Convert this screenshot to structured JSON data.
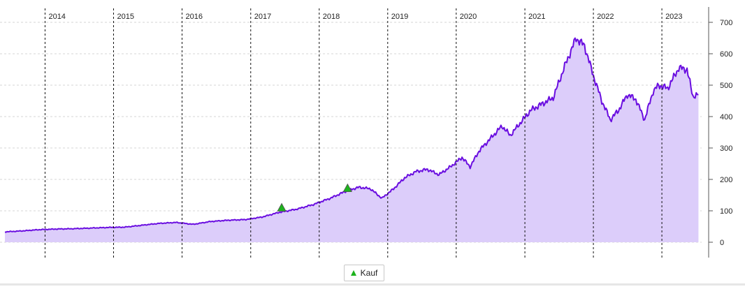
{
  "chart_data": {
    "type": "area",
    "title": "",
    "xlabel": "",
    "ylabel": "",
    "x_range": [
      "2013-06-01",
      "2023-08-01"
    ],
    "ylim": [
      0,
      700
    ],
    "y_ticks": [
      0,
      100,
      200,
      300,
      400,
      500,
      600,
      700
    ],
    "y_axis_position": "right",
    "year_markers": [
      {
        "label": "2014",
        "date": "2014-01-01"
      },
      {
        "label": "2015",
        "date": "2015-01-01"
      },
      {
        "label": "2016",
        "date": "2016-01-01"
      },
      {
        "label": "2017",
        "date": "2017-01-01"
      },
      {
        "label": "2018",
        "date": "2018-01-01"
      },
      {
        "label": "2019",
        "date": "2019-01-01"
      },
      {
        "label": "2020",
        "date": "2020-01-01"
      },
      {
        "label": "2021",
        "date": "2021-01-01"
      },
      {
        "label": "2022",
        "date": "2022-01-01"
      },
      {
        "label": "2023",
        "date": "2023-01-01"
      }
    ],
    "grid": true,
    "line_color": "#6a0ee0",
    "fill_color": "#dccdfa",
    "series": [
      {
        "points": [
          [
            "2013-06-01",
            33
          ],
          [
            "2013-09-01",
            36
          ],
          [
            "2013-12-01",
            40
          ],
          [
            "2014-03-01",
            42
          ],
          [
            "2014-06-01",
            43
          ],
          [
            "2014-09-01",
            45
          ],
          [
            "2014-12-01",
            47
          ],
          [
            "2015-03-01",
            48
          ],
          [
            "2015-06-01",
            54
          ],
          [
            "2015-09-01",
            60
          ],
          [
            "2015-12-01",
            63
          ],
          [
            "2016-03-01",
            57
          ],
          [
            "2016-06-01",
            66
          ],
          [
            "2016-09-01",
            70
          ],
          [
            "2016-12-01",
            72
          ],
          [
            "2017-03-01",
            80
          ],
          [
            "2017-06-01",
            95
          ],
          [
            "2017-09-01",
            105
          ],
          [
            "2017-12-01",
            120
          ],
          [
            "2018-03-01",
            140
          ],
          [
            "2018-06-01",
            165
          ],
          [
            "2018-08-01",
            175
          ],
          [
            "2018-10-01",
            170
          ],
          [
            "2018-12-01",
            140
          ],
          [
            "2019-02-01",
            170
          ],
          [
            "2019-04-01",
            205
          ],
          [
            "2019-06-01",
            225
          ],
          [
            "2019-08-01",
            232
          ],
          [
            "2019-10-01",
            215
          ],
          [
            "2019-12-01",
            240
          ],
          [
            "2020-02-01",
            270
          ],
          [
            "2020-03-15",
            240
          ],
          [
            "2020-05-01",
            290
          ],
          [
            "2020-07-01",
            330
          ],
          [
            "2020-09-01",
            370
          ],
          [
            "2020-10-15",
            340
          ],
          [
            "2020-12-01",
            375
          ],
          [
            "2021-02-01",
            420
          ],
          [
            "2021-04-01",
            440
          ],
          [
            "2021-06-01",
            460
          ],
          [
            "2021-08-01",
            560
          ],
          [
            "2021-10-01",
            650
          ],
          [
            "2021-11-15",
            625
          ],
          [
            "2022-01-01",
            530
          ],
          [
            "2022-02-15",
            450
          ],
          [
            "2022-04-01",
            390
          ],
          [
            "2022-05-15",
            420
          ],
          [
            "2022-07-01",
            470
          ],
          [
            "2022-08-15",
            455
          ],
          [
            "2022-10-01",
            390
          ],
          [
            "2022-11-15",
            480
          ],
          [
            "2022-12-15",
            500
          ],
          [
            "2023-02-01",
            490
          ],
          [
            "2023-04-01",
            555
          ],
          [
            "2023-05-15",
            550
          ],
          [
            "2023-06-15",
            465
          ],
          [
            "2023-07-15",
            470
          ]
        ]
      }
    ],
    "markers": [
      {
        "date": "2017-06-15",
        "value": 110,
        "shape": "triangle-up",
        "color": "#1db31d"
      },
      {
        "date": "2018-06-01",
        "value": 172,
        "shape": "triangle-up",
        "color": "#1db31d"
      }
    ],
    "legend": {
      "position": "bottom-center",
      "items": [
        {
          "label": "Kauf",
          "shape": "triangle-up",
          "color": "#1db31d"
        }
      ]
    }
  }
}
